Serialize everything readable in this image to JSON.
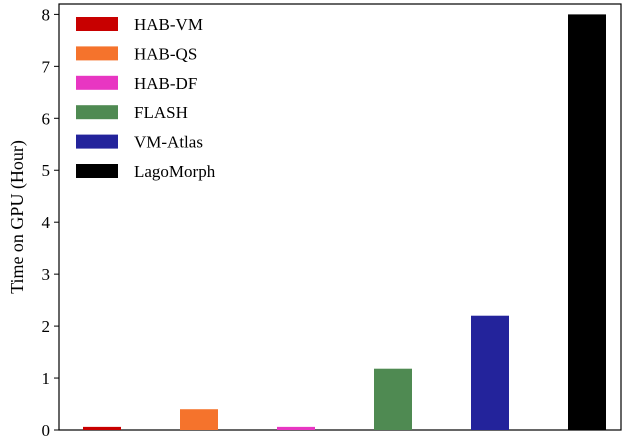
{
  "chart_data": {
    "type": "bar",
    "title": "",
    "xlabel": "",
    "ylabel": "Time on GPU (Hour)",
    "ylim": [
      0,
      8.2
    ],
    "yticks": [
      0,
      1,
      2,
      3,
      4,
      5,
      6,
      7,
      8
    ],
    "grid": false,
    "legend_position": "top-left",
    "series": [
      {
        "name": "HAB-VM",
        "value": 0.06,
        "color": "#c80000"
      },
      {
        "name": "HAB-QS",
        "value": 0.4,
        "color": "#f5732c"
      },
      {
        "name": "HAB-DF",
        "value": 0.06,
        "color": "#e836c2"
      },
      {
        "name": "FLASH",
        "value": 1.18,
        "color": "#4f8a52"
      },
      {
        "name": "VM-Atlas",
        "value": 2.2,
        "color": "#23239b"
      },
      {
        "name": "LagoMorph",
        "value": 8.0,
        "color": "#000000"
      }
    ]
  }
}
